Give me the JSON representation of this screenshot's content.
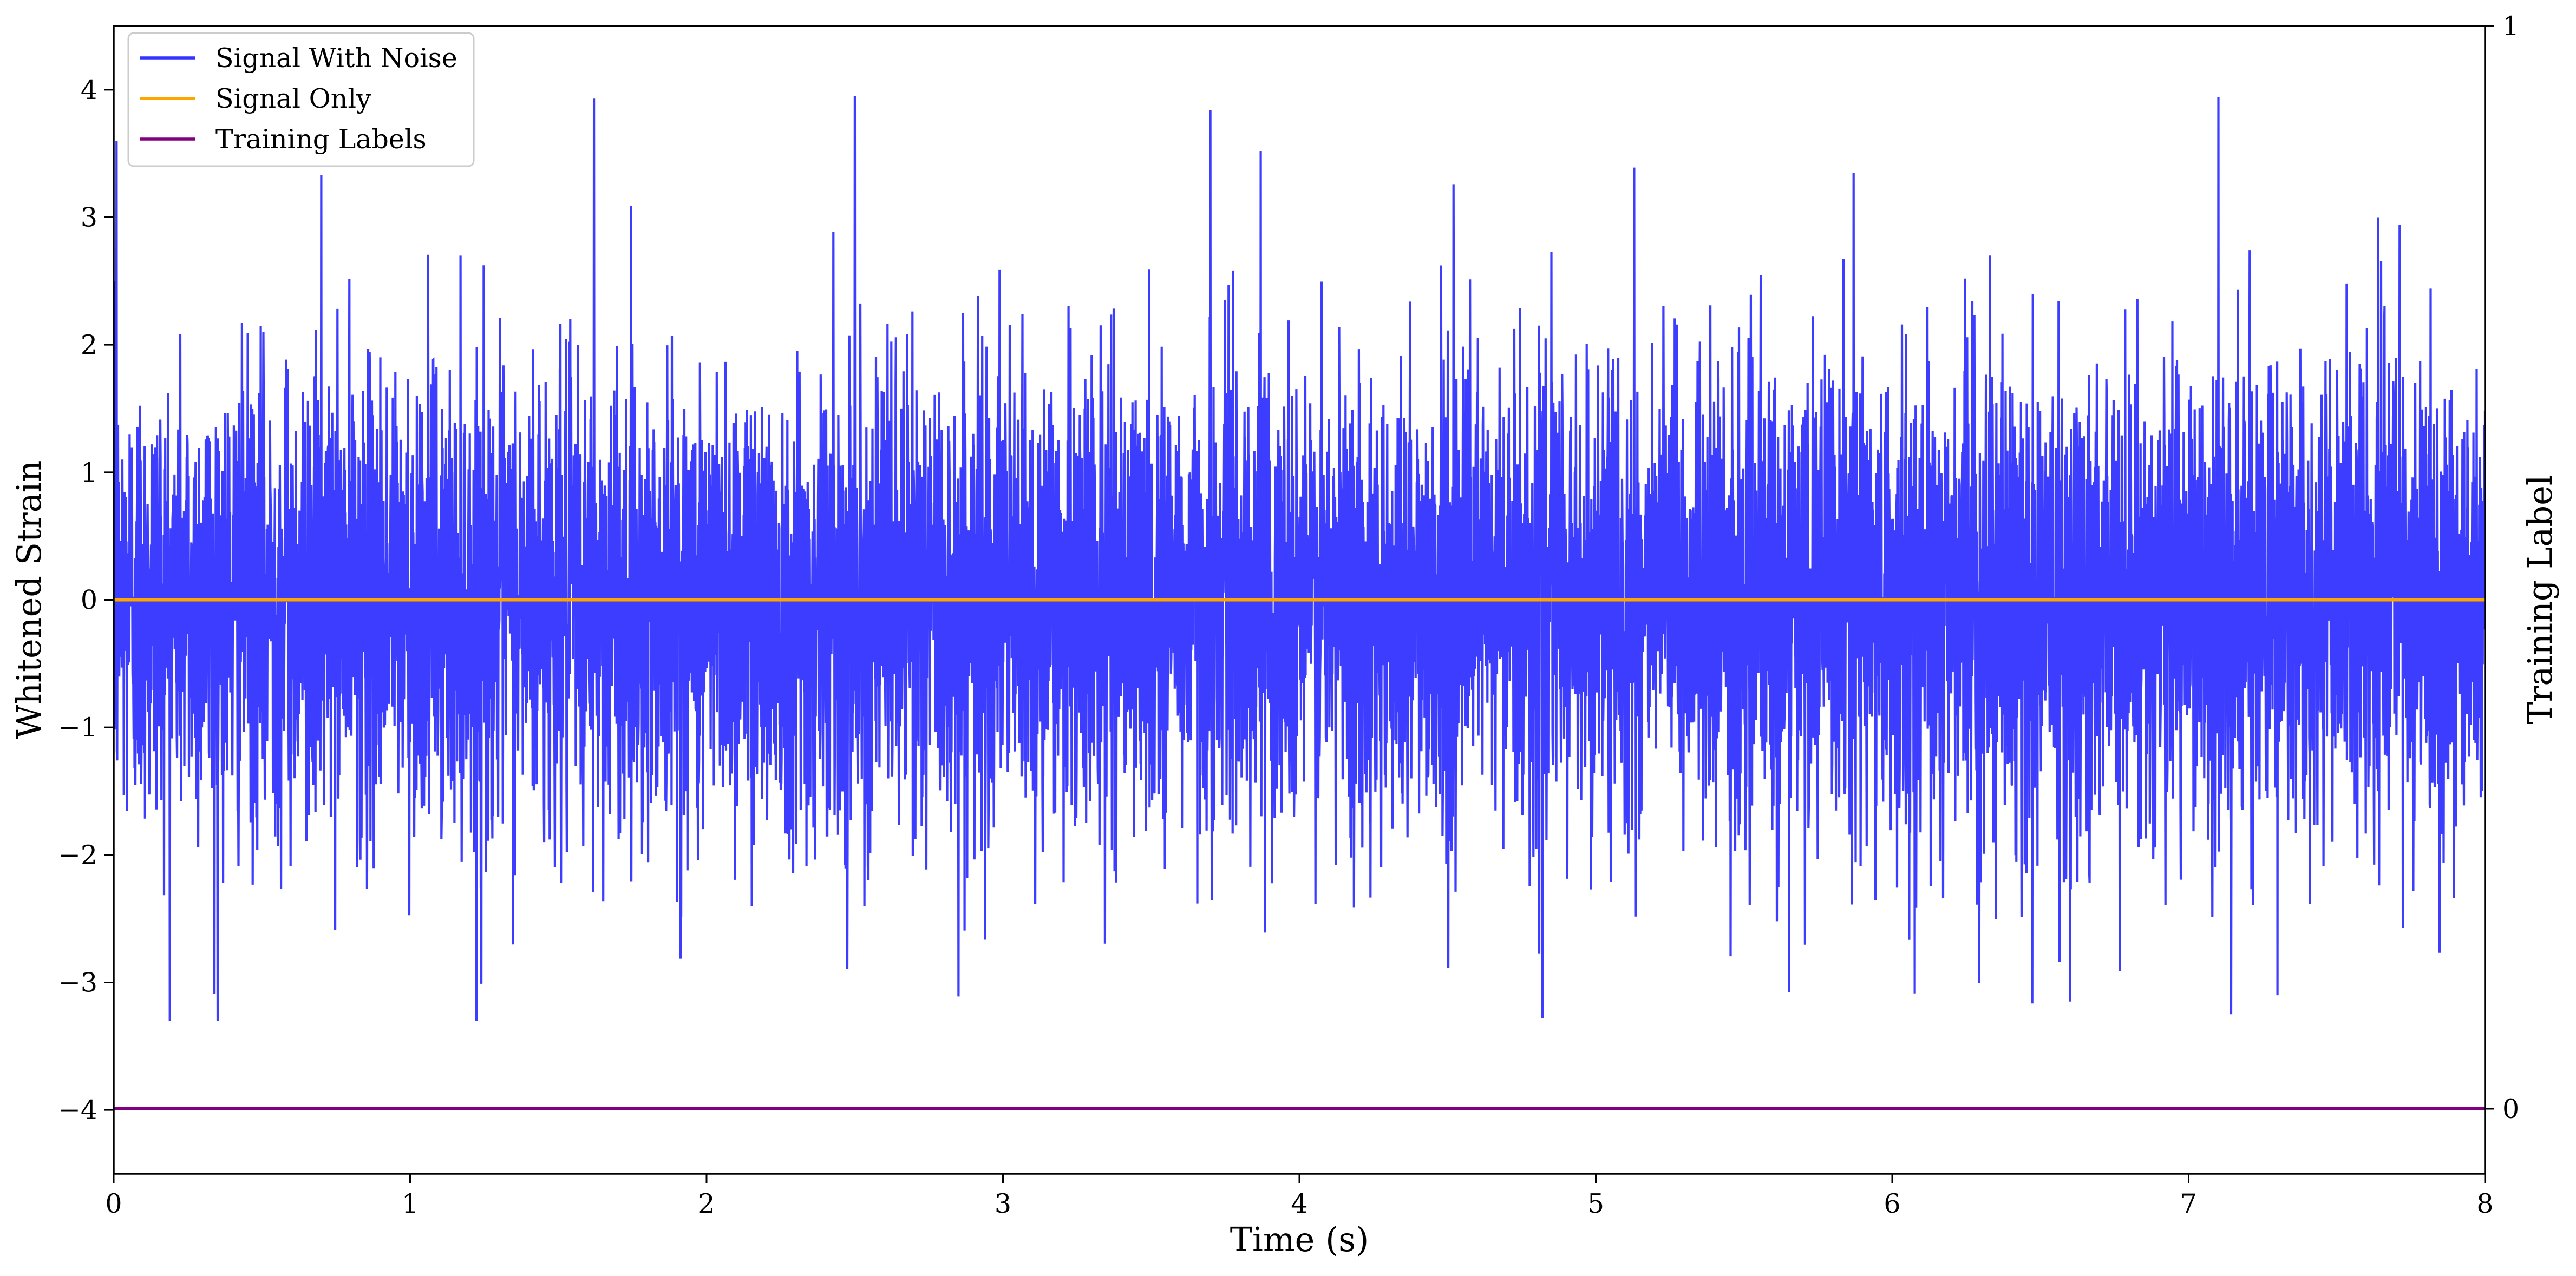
{
  "chart_data": {
    "type": "line",
    "title": "",
    "xlabel": "Time (s)",
    "ylabel": "Whitened Strain",
    "y2label": "Training Label",
    "xlim": [
      0,
      8
    ],
    "ylim": [
      -4.5,
      4.5
    ],
    "y2lim": [
      -0.06,
      1.0
    ],
    "xticks": [
      "0",
      "1",
      "2",
      "3",
      "4",
      "5",
      "6",
      "7",
      "8"
    ],
    "yticks": [
      "−4",
      "−3",
      "−2",
      "−1",
      "0",
      "1",
      "2",
      "3",
      "4"
    ],
    "y2ticks": [
      "0",
      "1"
    ],
    "grid": false,
    "legend_position": "top-left",
    "series": [
      {
        "name": "Signal With Noise",
        "color": "#3333ff",
        "noise_std": 0.9,
        "range_min": -3.3,
        "range_max": 3.95,
        "note_values": "dense white noise, ~8192 samples; peak samples listed",
        "peaks": [
          {
            "x": 0.01,
            "y": 3.6
          },
          {
            "x": 0.7,
            "y": 3.33
          },
          {
            "x": 1.62,
            "y": 3.93
          },
          {
            "x": 2.5,
            "y": 3.95
          },
          {
            "x": 3.7,
            "y": 3.84
          },
          {
            "x": 3.87,
            "y": 3.52
          },
          {
            "x": 5.13,
            "y": 3.39
          },
          {
            "x": 5.87,
            "y": 3.35
          },
          {
            "x": 7.1,
            "y": 3.94
          },
          {
            "x": 7.64,
            "y": 3.0
          },
          {
            "x": 0.34,
            "y": -3.09
          },
          {
            "x": 1.24,
            "y": -3.01
          },
          {
            "x": 2.85,
            "y": -3.11
          },
          {
            "x": 4.82,
            "y": -3.28
          },
          {
            "x": 6.6,
            "y": -3.15
          },
          {
            "x": 7.3,
            "y": -3.1
          }
        ]
      },
      {
        "name": "Signal Only",
        "color": "#ffa500",
        "x": [
          0,
          8
        ],
        "y": [
          0,
          0
        ]
      },
      {
        "name": "Training Labels",
        "color": "#800080",
        "axis": "right",
        "x": [
          0,
          8
        ],
        "y": [
          0,
          0
        ]
      }
    ]
  }
}
